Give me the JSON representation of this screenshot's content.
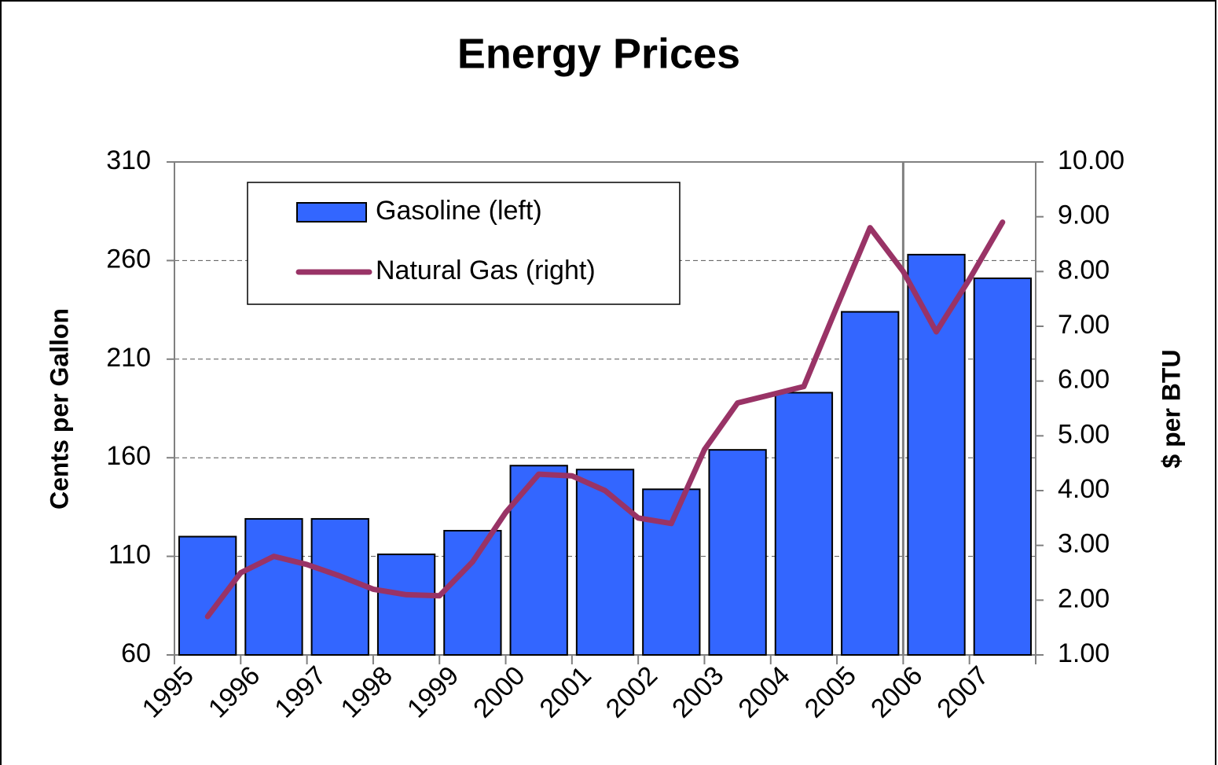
{
  "chart_data": {
    "type": "bar_line",
    "title": "Energy Prices",
    "y_label": "Cents per Gallon",
    "y2_label": "$ per BTU",
    "categories": [
      "1995",
      "1996",
      "1997",
      "1998",
      "1999",
      "2000",
      "2001",
      "2002",
      "2003",
      "2004",
      "2005",
      "2006",
      "2007"
    ],
    "series": [
      {
        "name": "Gasoline (left)",
        "type": "bar",
        "color": "#3366ff",
        "values": [
          120,
          129,
          129,
          111,
          123,
          156,
          154,
          144,
          164,
          193,
          234,
          263,
          251
        ]
      },
      {
        "name": "Natural Gas (right)",
        "type": "line",
        "axis": "y2",
        "color": "#993366",
        "x": [
          1995,
          1995.5,
          1996,
          1996.5,
          1997,
          1997.5,
          1998,
          1998.5,
          1999,
          1999.5,
          2000,
          2000.5,
          2001,
          2001.5,
          2002,
          2002.5,
          2003,
          2003.5,
          2004,
          2004.5,
          2005,
          2005.5,
          2006,
          2006.5,
          2007
        ],
        "values": [
          1.7,
          2.5,
          2.8,
          2.65,
          2.44,
          2.2,
          2.1,
          2.08,
          2.7,
          3.6,
          4.3,
          4.27,
          4.0,
          3.5,
          3.4,
          4.75,
          5.6,
          5.75,
          5.9,
          7.36,
          8.8,
          8.0,
          6.9,
          7.86,
          8.9
        ]
      }
    ],
    "ylim": [
      60,
      310
    ],
    "yticks": [
      60,
      110,
      160,
      210,
      260,
      310
    ],
    "y2lim": [
      1,
      10
    ],
    "y2ticks": [
      {
        "value": 1,
        "label": "1.00"
      },
      {
        "value": 2,
        "label": "2.00"
      },
      {
        "value": 3,
        "label": "3.00"
      },
      {
        "value": 4,
        "label": "4.00"
      },
      {
        "value": 5,
        "label": "5.00"
      },
      {
        "value": 6,
        "label": "6.00"
      },
      {
        "value": 7,
        "label": "7.00"
      },
      {
        "value": 8,
        "label": "8.00"
      },
      {
        "value": 9,
        "label": "9.00"
      },
      {
        "value": 10,
        "label": "10.00"
      }
    ],
    "grid": true,
    "legend": "upper left"
  }
}
